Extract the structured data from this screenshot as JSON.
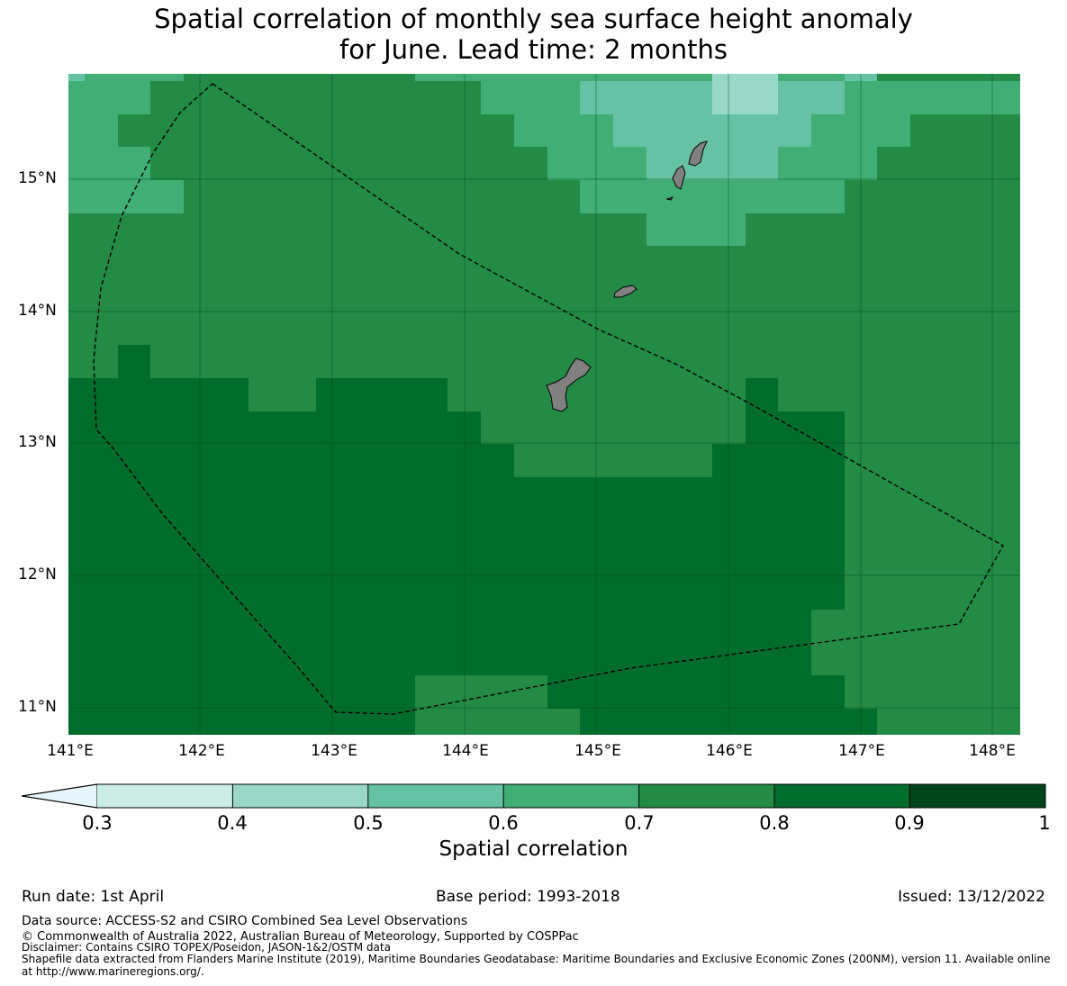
{
  "title": {
    "line1": "Spatial correlation of monthly sea surface height anomaly",
    "line2": "for June. Lead time: 2 months"
  },
  "map": {
    "lon_range": [
      141.0,
      148.2
    ],
    "lat_range": [
      10.8,
      15.8
    ],
    "lat_ticks": [
      "15°N",
      "14°N",
      "13°N",
      "12°N",
      "11°N"
    ],
    "lon_ticks": [
      "141°E",
      "142°E",
      "143°E",
      "144°E",
      "145°E",
      "146°E",
      "147°E",
      "148°E"
    ],
    "grid": true,
    "land_color": "#808080"
  },
  "colorbar": {
    "ticks": [
      "0.3",
      "0.4",
      "0.5",
      "0.6",
      "0.7",
      "0.8",
      "0.9",
      "1"
    ],
    "colors": [
      "#e5f5f9",
      "#ccece6",
      "#99d8c9",
      "#66c2a4",
      "#41ae76",
      "#238b45",
      "#006d2c",
      "#00441b"
    ],
    "label": "Spatial correlation"
  },
  "footer": {
    "run_date": "Run date: 1st April",
    "base_period": "Base period: 1993-2018",
    "issued": "Issued: 13/12/2022",
    "data_source": "Data source: ACCESS-S2 and CSIRO Combined Sea Level Observations",
    "copyright": "© Commonwealth of Australia 2022, Australian Bureau of Meteorology, Supported by COSPPac",
    "disclaimer": "Disclaimer: Contains CSIRO TOPEX/Poseidon, JASON-1&2/OSTM data",
    "shapefile1": "Shapefile data extracted from Flanders Marine Institute (2019), Maritime Boundaries Geodatabase: Maritime Boundaries and Exclusive Economic Zones (200NM), version 11. Available online",
    "shapefile2": "at http://www.marineregions.org/."
  }
}
